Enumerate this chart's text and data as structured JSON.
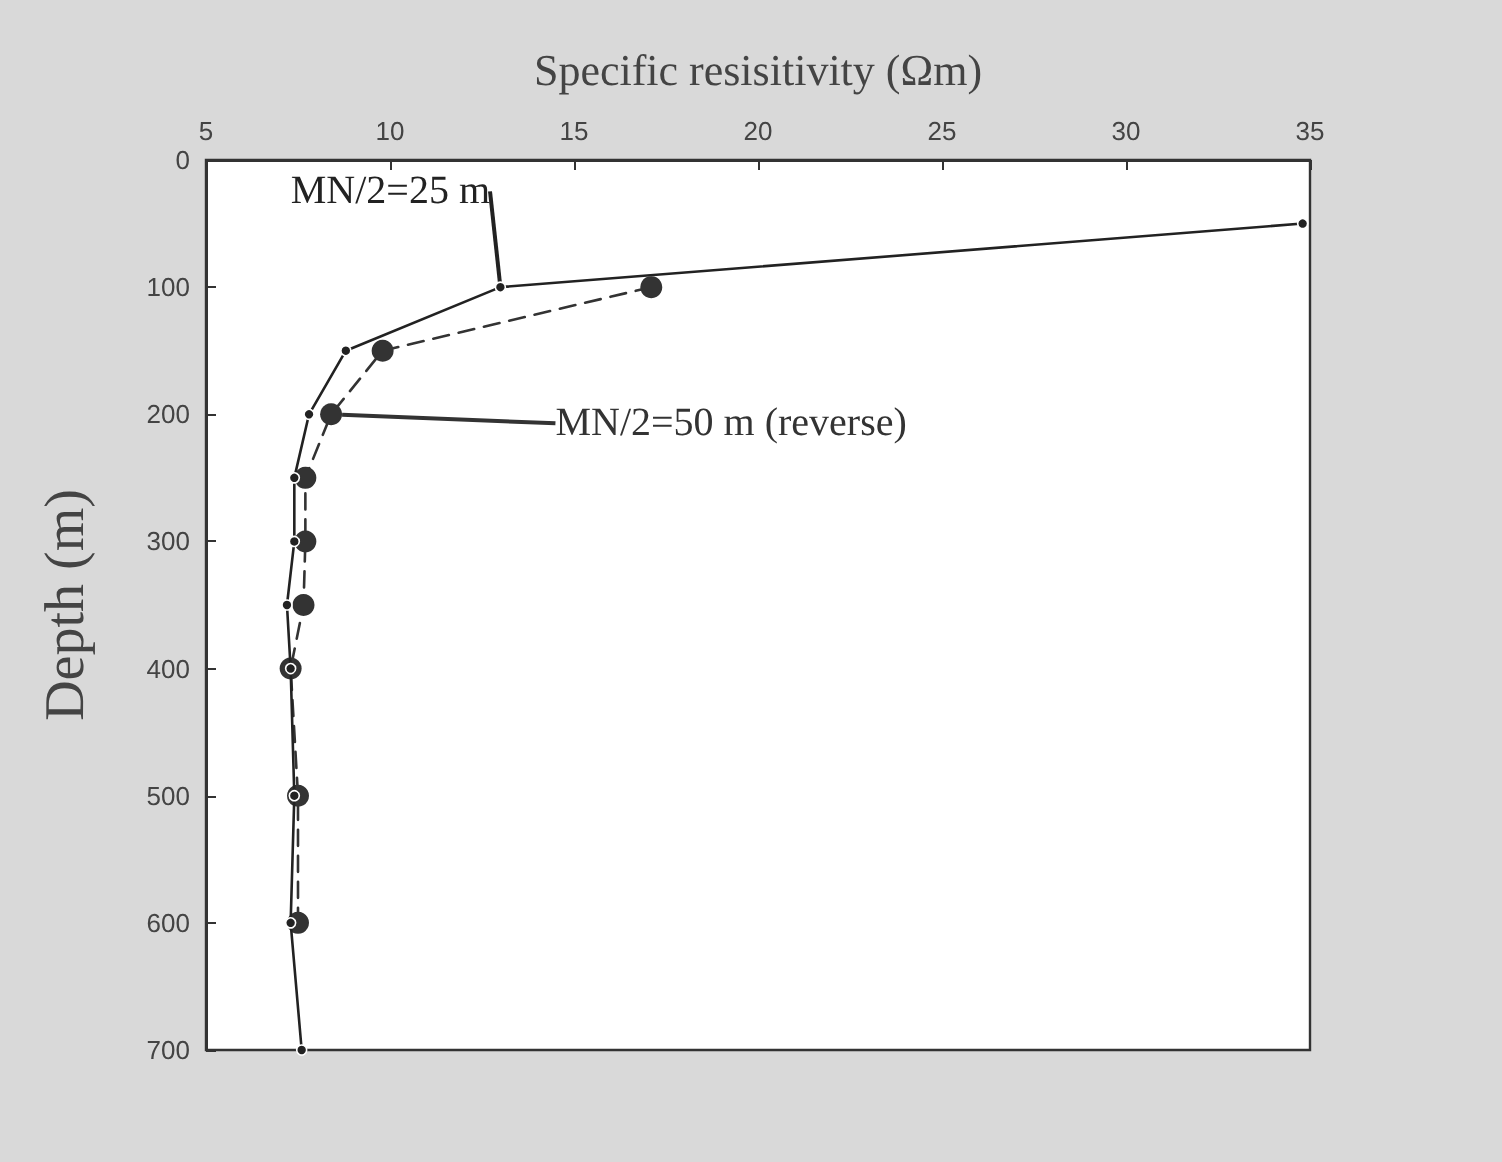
{
  "chart_data": {
    "type": "line",
    "xlabel": "Specific resisitivity (Ωm)",
    "ylabel": "Depth (m)",
    "xlim": [
      5,
      35
    ],
    "xticks": [
      5,
      10,
      15,
      20,
      25,
      30,
      35
    ],
    "ylim": [
      700,
      0
    ],
    "yticks": [
      0,
      100,
      200,
      300,
      400,
      500,
      600,
      700
    ],
    "grid": false,
    "legend": false,
    "series": [
      {
        "name": "MN/2=25 m",
        "color": "#222222",
        "marker": "circle",
        "line_style": "solid",
        "x": [
          34.8,
          13.0,
          8.8,
          7.8,
          7.4,
          7.4,
          7.2,
          7.3,
          7.4,
          7.3,
          7.6
        ],
        "values": [
          50,
          100,
          150,
          200,
          250,
          300,
          350,
          400,
          500,
          600,
          700
        ]
      },
      {
        "name": "MN/2=50 m (reverse)",
        "color": "#333333",
        "marker": "circle",
        "line_style": "dashed",
        "x": [
          17.1,
          9.8,
          8.4,
          7.7,
          7.7,
          7.65,
          7.3,
          7.5,
          7.5
        ],
        "values": [
          100,
          150,
          200,
          250,
          300,
          350,
          400,
          500,
          600
        ]
      }
    ]
  }
}
